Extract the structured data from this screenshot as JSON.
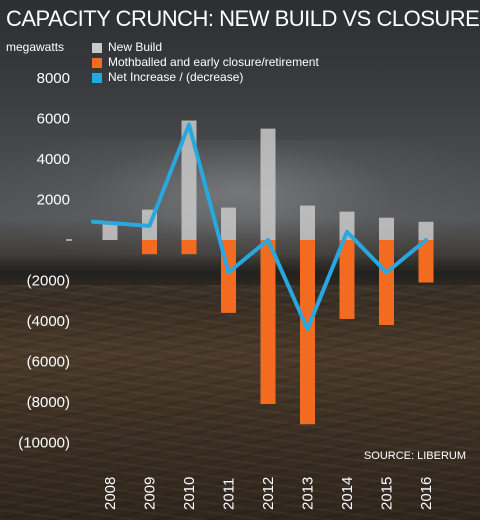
{
  "chart_data": {
    "type": "bar",
    "title": "CAPACITY CRUNCH: NEW BUILD VS CLOSURES",
    "ylabel": "megawatts",
    "source": "SOURCE: LIBERUM",
    "ylim": [
      -10000,
      8000
    ],
    "y_ticks": [
      {
        "value": 8000,
        "label": "8000"
      },
      {
        "value": 6000,
        "label": "6000"
      },
      {
        "value": 4000,
        "label": "4000"
      },
      {
        "value": 2000,
        "label": "2000"
      },
      {
        "value": -2000,
        "label": "(2000)"
      },
      {
        "value": -4000,
        "label": "(4000)"
      },
      {
        "value": -6000,
        "label": "(6000)"
      },
      {
        "value": -8000,
        "label": "(8000)"
      },
      {
        "value": -10000,
        "label": "(10000)"
      }
    ],
    "categories": [
      "2008",
      "2009",
      "2010",
      "2011",
      "2012",
      "2013",
      "2014",
      "2015",
      "2016"
    ],
    "series": [
      {
        "name": "New Build",
        "kind": "bar",
        "color": "#c9c9c9",
        "values": [
          900,
          1500,
          5900,
          1600,
          5500,
          1700,
          1400,
          1100,
          900
        ]
      },
      {
        "name": "Mothballed and early closure/retirement",
        "kind": "bar",
        "color": "#f26b21",
        "values": [
          0,
          -700,
          -700,
          -3600,
          -8100,
          -9100,
          -3900,
          -4200,
          -2100
        ]
      },
      {
        "name": "Net Increase / (decrease)",
        "kind": "line",
        "color": "#29a8e0",
        "values": [
          900,
          700,
          5700,
          -1600,
          0,
          -4400,
          400,
          -1600,
          0
        ]
      }
    ],
    "grid": false,
    "legend_position": "top-left"
  }
}
